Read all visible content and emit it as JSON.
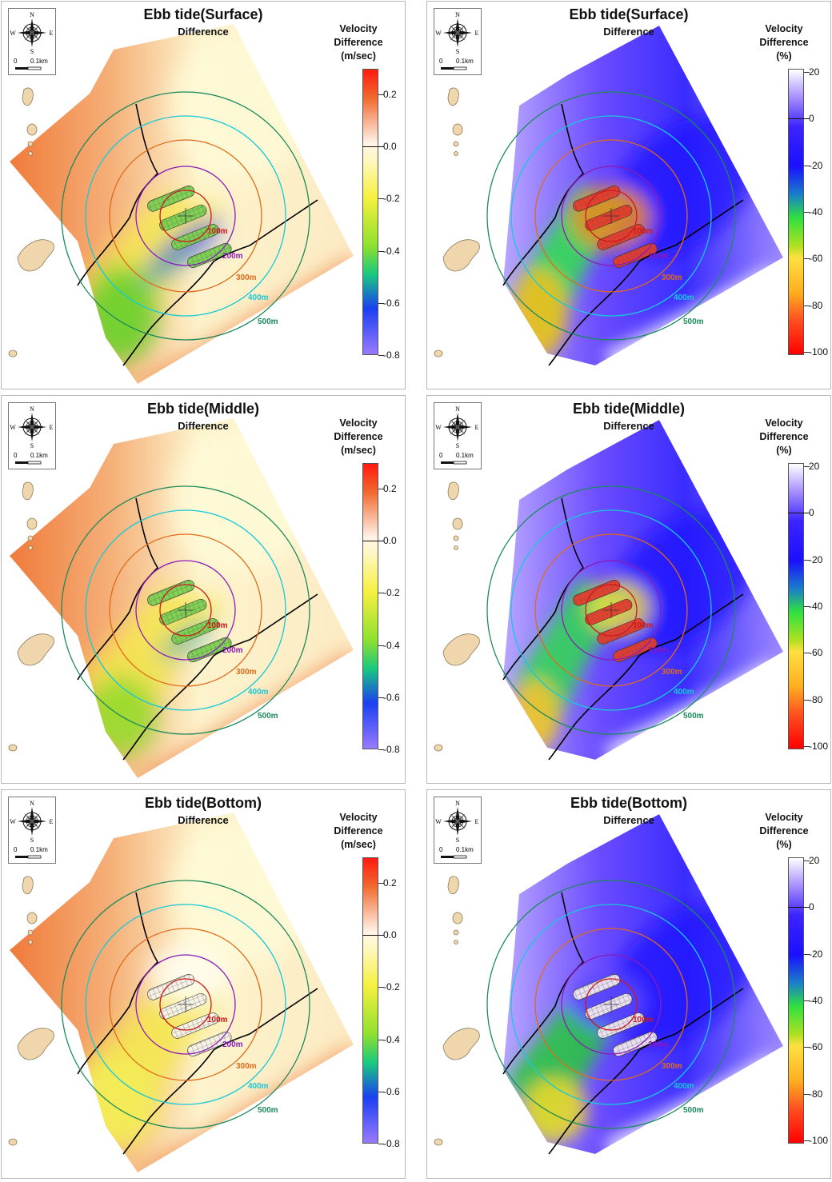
{
  "compass": {
    "n": "N",
    "s": "S",
    "e": "E",
    "w": "W",
    "scale_zero": "0",
    "scale_label": "0.1km"
  },
  "rings": [
    {
      "label": "100m",
      "color": "#cc1a1a"
    },
    {
      "label": "200m",
      "color": "#8a1ab8"
    },
    {
      "label": "300m",
      "color": "#e06a1a"
    },
    {
      "label": "400m",
      "color": "#18c8d8"
    },
    {
      "label": "500m",
      "color": "#1a8a5a"
    }
  ],
  "panels": [
    {
      "title": "Ebb tide(Surface)",
      "subtitle": "Difference",
      "legend": [
        "Velocity",
        "Difference",
        "(m/sec)"
      ],
      "ticks": [
        "0.2",
        "0.0",
        "-0.2",
        "-0.4",
        "-0.6",
        "-0.8"
      ],
      "mode": "abs"
    },
    {
      "title": "Ebb tide(Surface)",
      "subtitle": "Difference",
      "legend": [
        "Velocity",
        "Difference",
        "(%)"
      ],
      "ticks": [
        "20",
        "0",
        "-20",
        "-40",
        "-60",
        "-80",
        "-100"
      ],
      "mode": "pct"
    },
    {
      "title": "Ebb tide(Middle)",
      "subtitle": "Difference",
      "legend": [
        "Velocity",
        "Difference",
        "(m/sec)"
      ],
      "ticks": [
        "0.2",
        "0.0",
        "-0.2",
        "-0.4",
        "-0.6",
        "-0.8"
      ],
      "mode": "abs"
    },
    {
      "title": "Ebb tide(Middle)",
      "subtitle": "Difference",
      "legend": [
        "Velocity",
        "Difference",
        "(%)"
      ],
      "ticks": [
        "20",
        "0",
        "-20",
        "-40",
        "-60",
        "-80",
        "-100"
      ],
      "mode": "pct"
    },
    {
      "title": "Ebb tide(Bottom)",
      "subtitle": "Difference",
      "legend": [
        "Velocity",
        "Difference",
        "(m/sec)"
      ],
      "ticks": [
        "0.2",
        "0.0",
        "-0.2",
        "-0.4",
        "-0.6",
        "-0.8"
      ],
      "mode": "abs"
    },
    {
      "title": "Ebb tide(Bottom)",
      "subtitle": "Difference",
      "legend": [
        "Velocity",
        "Difference",
        "(%)"
      ],
      "ticks": [
        "20",
        "0",
        "-20",
        "-40",
        "-60",
        "-80",
        "-100"
      ],
      "mode": "pct"
    }
  ]
}
